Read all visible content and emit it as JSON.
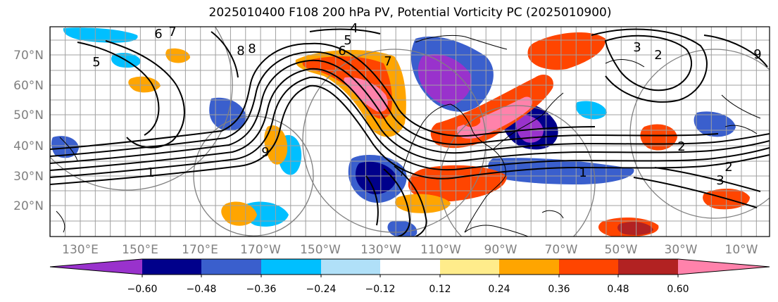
{
  "title": "2025010400 F108 200 hPa PV, Potential Vorticity PC (2025010900)",
  "map": {
    "lat_labels": [
      "70°N",
      "60°N",
      "50°N",
      "40°N",
      "30°N",
      "20°N"
    ],
    "lon_labels": [
      "130°E",
      "150°E",
      "170°E",
      "170°W",
      "150°W",
      "130°W",
      "110°W",
      "90°W",
      "70°W",
      "50°W",
      "30°W",
      "10°W"
    ],
    "contour_labels": [
      "4",
      "5",
      "6",
      "7",
      "8",
      "9",
      "3",
      "2",
      "1",
      "1",
      "2",
      "3",
      "2",
      "5",
      "6",
      "7",
      "8",
      "9"
    ],
    "colors": {
      "axis_label": "#808080",
      "coast": "#000000",
      "contour": "#000000",
      "grid": "#a0a0a0"
    }
  },
  "colorbar": {
    "tick_labels": [
      "−0.60",
      "−0.48",
      "−0.36",
      "−0.24",
      "−0.12",
      "0.12",
      "0.24",
      "0.36",
      "0.48",
      "0.60"
    ],
    "colors": [
      "#9932cc",
      "#00008b",
      "#3a5fcd",
      "#00bfff",
      "#b0e0f8",
      "#ffffff",
      "#ffec8b",
      "#ffa500",
      "#ff4500",
      "#b22222",
      "#ff82ab"
    ]
  }
}
